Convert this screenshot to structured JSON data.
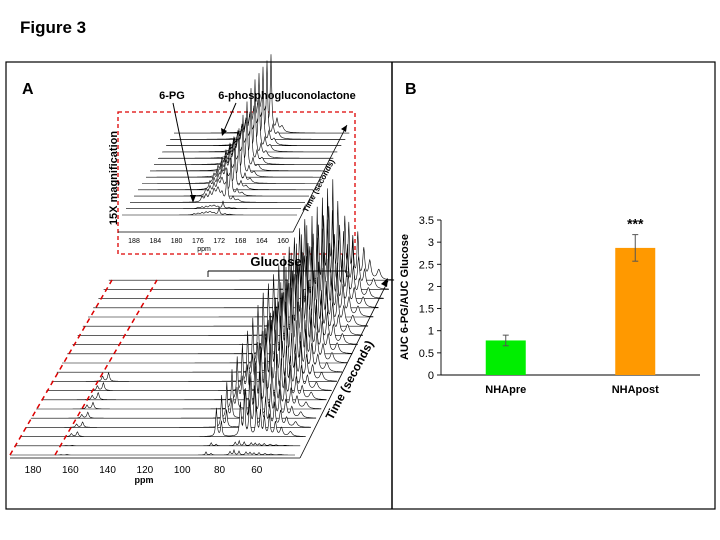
{
  "figure_title": "Figure 3",
  "panel_a": {
    "label": "A",
    "inset": {
      "peak_label_1": "6-PG",
      "peak_label_2": "6-phosphogluconolactone",
      "ylabel": "15X magnification",
      "time_label": "Time (seconds)",
      "ticks": [
        "188",
        "184",
        "180",
        "176",
        "172",
        "168",
        "164",
        "160"
      ],
      "xlabel": "ppm"
    },
    "main": {
      "bracket_label": "Glucose",
      "time_label": "Time (seconds)",
      "ticks": [
        "180",
        "160",
        "140",
        "120",
        "100",
        "80",
        "60"
      ],
      "xlabel": "ppm"
    }
  },
  "panel_b": {
    "label": "B",
    "significance": "***"
  },
  "colors": {
    "bar_pre": "#00ee00",
    "bar_post": "#ff9900",
    "dash": "#dd0000"
  },
  "chart_data": {
    "type": "bar",
    "categories": [
      "NHApre",
      "NHApost"
    ],
    "values": [
      0.78,
      2.87
    ],
    "errors": [
      0.12,
      0.3
    ],
    "ylabel": "AUC 6-PG/AUC Glucose",
    "ylim": [
      0,
      3.5
    ],
    "yticks": [
      "0",
      "0.5",
      "1",
      "1.5",
      "2",
      "2.5",
      "3",
      "3.5"
    ],
    "annotation": "***"
  }
}
